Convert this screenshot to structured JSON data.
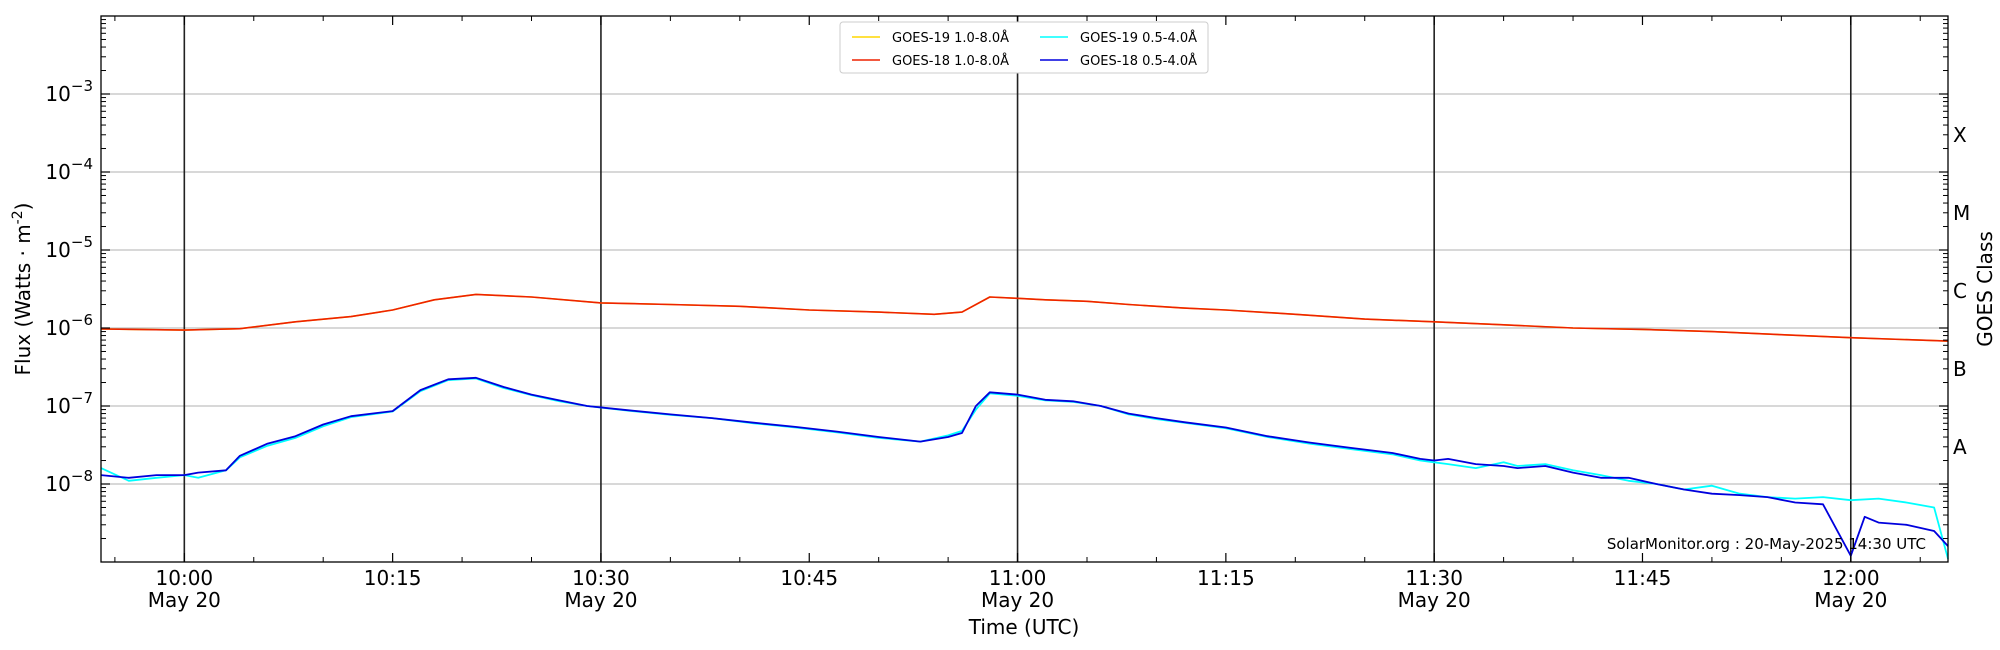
{
  "chart_data": {
    "type": "line",
    "xlabel": "Time (UTC)",
    "ylabel_main": "Flux (Watts · m",
    "ylabel_sup": "-2",
    "ylabel_close": ")",
    "right_label": "GOES Class",
    "footer": "SolarMonitor.org : 20-May-2025 14:30 UTC",
    "y_scale": "log",
    "ylim": [
      1e-09,
      0.01
    ],
    "xlim": [
      "09:54",
      "12:07"
    ],
    "grid": "horizontal",
    "legend_position": "top-center",
    "y_ticks": [
      {
        "value": 1e-08,
        "mant": "10",
        "exp": "−8"
      },
      {
        "value": 1e-07,
        "mant": "10",
        "exp": "−7"
      },
      {
        "value": 1e-06,
        "mant": "10",
        "exp": "−6"
      },
      {
        "value": 1e-05,
        "mant": "10",
        "exp": "−5"
      },
      {
        "value": 0.0001,
        "mant": "10",
        "exp": "−4"
      },
      {
        "value": 0.001,
        "mant": "10",
        "exp": "−3"
      }
    ],
    "x_ticks": [
      {
        "time": "10:00",
        "label": "10:00",
        "date": "May 20",
        "vline": true
      },
      {
        "time": "10:15",
        "label": "10:15",
        "date": "",
        "vline": false
      },
      {
        "time": "10:30",
        "label": "10:30",
        "date": "May 20",
        "vline": true
      },
      {
        "time": "10:45",
        "label": "10:45",
        "date": "",
        "vline": false
      },
      {
        "time": "11:00",
        "label": "11:00",
        "date": "May 20",
        "vline": true
      },
      {
        "time": "11:15",
        "label": "11:15",
        "date": "",
        "vline": false
      },
      {
        "time": "11:30",
        "label": "11:30",
        "date": "May 20",
        "vline": true
      },
      {
        "time": "11:45",
        "label": "11:45",
        "date": "",
        "vline": false
      },
      {
        "time": "12:00",
        "label": "12:00",
        "date": "May 20",
        "vline": true
      }
    ],
    "classes": [
      {
        "label": "A",
        "value": 3e-08
      },
      {
        "label": "B",
        "value": 3e-07
      },
      {
        "label": "C",
        "value": 3e-06
      },
      {
        "label": "M",
        "value": 3e-05
      },
      {
        "label": "X",
        "value": 0.0003
      }
    ],
    "series": [
      {
        "name": "GOES-19 1.0-8.0Å",
        "color": "#ffd700",
        "x": [
          "09:54",
          "10:00",
          "10:04",
          "10:08",
          "10:12",
          "10:15",
          "10:18",
          "10:21",
          "10:25",
          "10:30",
          "10:35",
          "10:40",
          "10:45",
          "10:50",
          "10:54",
          "10:56",
          "10:58",
          "11:00",
          "11:02",
          "11:05",
          "11:08",
          "11:12",
          "11:15",
          "11:20",
          "11:25",
          "11:30",
          "11:35",
          "11:40",
          "11:45",
          "11:50",
          "11:55",
          "12:00",
          "12:07"
        ],
        "y": [
          9.7e-07,
          9.4e-07,
          9.8e-07,
          1.2e-06,
          1.4e-06,
          1.7e-06,
          2.3e-06,
          2.7e-06,
          2.5e-06,
          2.1e-06,
          2e-06,
          1.9e-06,
          1.7e-06,
          1.6e-06,
          1.5e-06,
          1.6e-06,
          2.5e-06,
          2.4e-06,
          2.3e-06,
          2.2e-06,
          2e-06,
          1.8e-06,
          1.7e-06,
          1.5e-06,
          1.3e-06,
          1.2e-06,
          1.1e-06,
          1e-06,
          9.6e-07,
          9e-07,
          8.2e-07,
          7.5e-07,
          6.8e-07
        ]
      },
      {
        "name": "GOES-19 0.5-4.0Å",
        "color": "#00ffff",
        "x": [
          "09:54",
          "09:56",
          "09:58",
          "10:00",
          "10:01",
          "10:03",
          "10:04",
          "10:06",
          "10:08",
          "10:10",
          "10:12",
          "10:15",
          "10:17",
          "10:19",
          "10:21",
          "10:23",
          "10:25",
          "10:27",
          "10:29",
          "10:32",
          "10:35",
          "10:38",
          "10:41",
          "10:44",
          "10:47",
          "10:50",
          "10:53",
          "10:55",
          "10:56",
          "10:57",
          "10:58",
          "11:00",
          "11:02",
          "11:04",
          "11:06",
          "11:08",
          "11:10",
          "11:12",
          "11:15",
          "11:18",
          "11:21",
          "11:24",
          "11:27",
          "11:29",
          "11:30",
          "11:31",
          "11:33",
          "11:35",
          "11:36",
          "11:38",
          "11:40",
          "11:42",
          "11:44",
          "11:46",
          "11:48",
          "11:50",
          "11:52",
          "11:54",
          "11:56",
          "11:58",
          "12:00",
          "12:02",
          "12:04",
          "12:06",
          "12:07"
        ],
        "y": [
          1.6e-08,
          1.1e-08,
          1.2e-08,
          1.3e-08,
          1.2e-08,
          1.5e-08,
          2.2e-08,
          3.1e-08,
          3.9e-08,
          5.5e-08,
          7.2e-08,
          8.5e-08,
          1.55e-07,
          2.15e-07,
          2.25e-07,
          1.7e-07,
          1.38e-07,
          1.15e-07,
          1e-07,
          8.7e-08,
          7.7e-08,
          7e-08,
          6e-08,
          5.3e-08,
          4.6e-08,
          3.9e-08,
          3.5e-08,
          4.2e-08,
          4.8e-08,
          9e-08,
          1.45e-07,
          1.35e-07,
          1.18e-07,
          1.13e-07,
          1e-07,
          7.8e-08,
          6.8e-08,
          6.1e-08,
          5.2e-08,
          4e-08,
          3.3e-08,
          2.8e-08,
          2.4e-08,
          2e-08,
          1.9e-08,
          1.8e-08,
          1.6e-08,
          1.9e-08,
          1.7e-08,
          1.8e-08,
          1.5e-08,
          1.3e-08,
          1.1e-08,
          1e-08,
          8.5e-09,
          9.5e-09,
          7.5e-09,
          6.8e-09,
          6.5e-09,
          6.8e-09,
          6.2e-09,
          6.5e-09,
          5.8e-09,
          5e-09,
          1.1e-09
        ]
      },
      {
        "name": "GOES-18 1.0-8.0Å",
        "color": "#ee2200",
        "x": [
          "09:54",
          "10:00",
          "10:04",
          "10:08",
          "10:12",
          "10:15",
          "10:18",
          "10:21",
          "10:25",
          "10:30",
          "10:35",
          "10:40",
          "10:45",
          "10:50",
          "10:54",
          "10:56",
          "10:58",
          "11:00",
          "11:02",
          "11:05",
          "11:08",
          "11:12",
          "11:15",
          "11:20",
          "11:25",
          "11:30",
          "11:35",
          "11:40",
          "11:45",
          "11:50",
          "11:55",
          "12:00",
          "12:07"
        ],
        "y": [
          9.7e-07,
          9.4e-07,
          9.8e-07,
          1.2e-06,
          1.4e-06,
          1.7e-06,
          2.3e-06,
          2.7e-06,
          2.5e-06,
          2.1e-06,
          2e-06,
          1.9e-06,
          1.7e-06,
          1.6e-06,
          1.5e-06,
          1.6e-06,
          2.5e-06,
          2.4e-06,
          2.3e-06,
          2.2e-06,
          2e-06,
          1.8e-06,
          1.7e-06,
          1.5e-06,
          1.3e-06,
          1.2e-06,
          1.1e-06,
          1e-06,
          9.6e-07,
          9e-07,
          8.2e-07,
          7.5e-07,
          6.8e-07
        ]
      },
      {
        "name": "GOES-18 0.5-4.0Å",
        "color": "#0000dd",
        "x": [
          "09:54",
          "09:56",
          "09:58",
          "10:00",
          "10:01",
          "10:03",
          "10:04",
          "10:06",
          "10:08",
          "10:10",
          "10:12",
          "10:15",
          "10:17",
          "10:19",
          "10:21",
          "10:23",
          "10:25",
          "10:27",
          "10:29",
          "10:32",
          "10:35",
          "10:38",
          "10:41",
          "10:44",
          "10:47",
          "10:50",
          "10:53",
          "10:55",
          "10:56",
          "10:57",
          "10:58",
          "11:00",
          "11:02",
          "11:04",
          "11:06",
          "11:08",
          "11:10",
          "11:12",
          "11:15",
          "11:18",
          "11:21",
          "11:24",
          "11:27",
          "11:29",
          "11:30",
          "11:31",
          "11:33",
          "11:35",
          "11:36",
          "11:38",
          "11:40",
          "11:42",
          "11:44",
          "11:46",
          "11:48",
          "11:50",
          "11:52",
          "11:54",
          "11:56",
          "11:58",
          "12:00",
          "12:01",
          "12:02",
          "12:04",
          "12:06",
          "12:07"
        ],
        "y": [
          1.3e-08,
          1.2e-08,
          1.3e-08,
          1.3e-08,
          1.4e-08,
          1.5e-08,
          2.3e-08,
          3.3e-08,
          4.1e-08,
          5.8e-08,
          7.4e-08,
          8.6e-08,
          1.6e-07,
          2.2e-07,
          2.3e-07,
          1.75e-07,
          1.4e-07,
          1.18e-07,
          1e-07,
          8.8e-08,
          7.8e-08,
          7e-08,
          6.1e-08,
          5.4e-08,
          4.7e-08,
          4e-08,
          3.5e-08,
          4e-08,
          4.5e-08,
          1e-07,
          1.5e-07,
          1.4e-07,
          1.2e-07,
          1.15e-07,
          1e-07,
          8e-08,
          7e-08,
          6.2e-08,
          5.3e-08,
          4.1e-08,
          3.4e-08,
          2.9e-08,
          2.5e-08,
          2.1e-08,
          2e-08,
          2.1e-08,
          1.8e-08,
          1.7e-08,
          1.6e-08,
          1.7e-08,
          1.4e-08,
          1.2e-08,
          1.2e-08,
          1e-08,
          8.5e-09,
          7.5e-09,
          7.2e-09,
          6.8e-09,
          5.8e-09,
          5.5e-09,
          1.2e-09,
          3.8e-09,
          3.2e-09,
          3e-09,
          2.5e-09,
          1.6e-09
        ]
      }
    ]
  }
}
